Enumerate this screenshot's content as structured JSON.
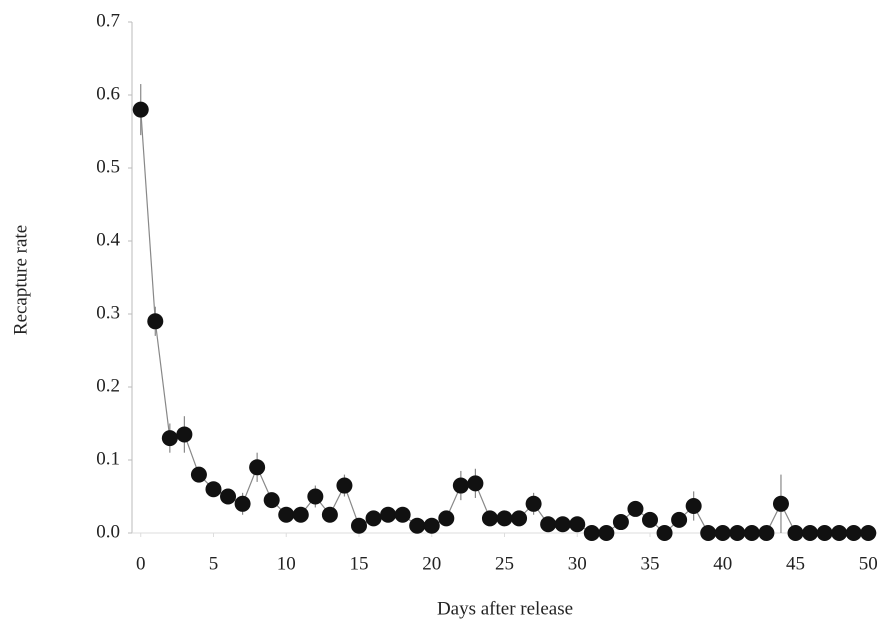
{
  "chart_data": {
    "type": "line",
    "x_label": "Days after release",
    "y_label": "Recapture rate",
    "x": [
      0,
      1,
      2,
      3,
      4,
      5,
      6,
      7,
      8,
      9,
      10,
      11,
      12,
      13,
      14,
      15,
      16,
      17,
      18,
      19,
      20,
      21,
      22,
      23,
      24,
      25,
      26,
      27,
      28,
      29,
      30,
      31,
      32,
      33,
      34,
      35,
      36,
      37,
      38,
      39,
      40,
      41,
      42,
      43,
      44,
      45,
      46,
      47,
      48,
      49,
      50
    ],
    "values": [
      0.58,
      0.29,
      0.13,
      0.135,
      0.08,
      0.06,
      0.05,
      0.04,
      0.09,
      0.045,
      0.025,
      0.025,
      0.05,
      0.025,
      0.065,
      0.01,
      0.02,
      0.025,
      0.025,
      0.01,
      0.01,
      0.02,
      0.065,
      0.068,
      0.02,
      0.02,
      0.02,
      0.04,
      0.012,
      0.012,
      0.012,
      0,
      0,
      0.015,
      0.033,
      0.018,
      0,
      0.018,
      0.037,
      0,
      0,
      0,
      0,
      0,
      0.04,
      0,
      0,
      0,
      0,
      0,
      0
    ],
    "errors": [
      0.035,
      0.02,
      0.02,
      0.025,
      0.01,
      0.01,
      0.01,
      0.015,
      0.02,
      0.01,
      0.005,
      0.005,
      0.015,
      0.005,
      0.015,
      0.005,
      0.005,
      0.005,
      0.005,
      0.005,
      0.005,
      0.005,
      0.02,
      0.02,
      0.005,
      0.005,
      0.005,
      0.015,
      0.005,
      0.005,
      0.005,
      0.005,
      0.005,
      0.005,
      0.01,
      0.005,
      0,
      0.005,
      0.02,
      0,
      0,
      0,
      0,
      0,
      0.04,
      0,
      0,
      0,
      0,
      0,
      0
    ],
    "color": "#111111",
    "line_color": "#888888",
    "xlim": [
      -0.6,
      50.6
    ],
    "ylim": [
      0,
      0.7
    ],
    "xticks": [
      0,
      5,
      10,
      15,
      20,
      25,
      30,
      35,
      40,
      45,
      50
    ],
    "yticks": [
      {
        "value": 0,
        "label": "0.0"
      },
      0.1,
      0.2,
      0.3,
      0.4,
      0.5,
      0.6,
      0.7
    ],
    "grid": false
  }
}
